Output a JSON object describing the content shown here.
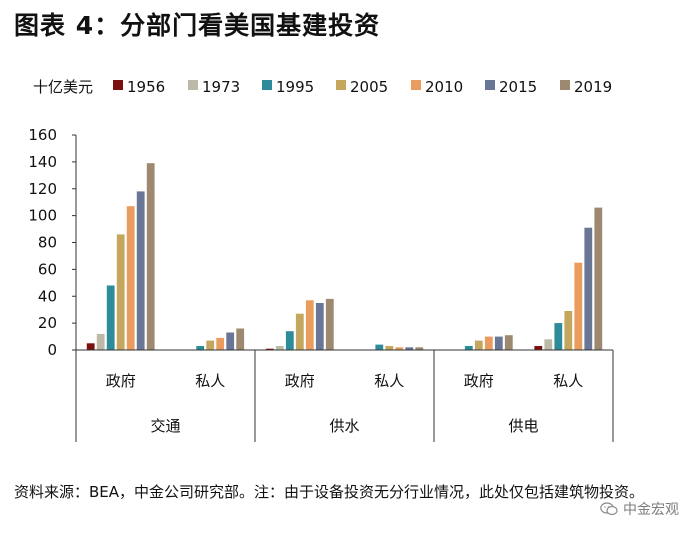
{
  "title": "图表 4：分部门看美国基建投资",
  "chart_data": {
    "type": "bar",
    "unit_label": "十亿美元",
    "ylim": [
      0,
      160
    ],
    "yticks": [
      "0",
      "20",
      "40",
      "60",
      "80",
      "100",
      "120",
      "140",
      "160"
    ],
    "legend_position": "top",
    "grid": false,
    "groups": [
      {
        "label": "交通",
        "categories": [
          "政府",
          "私人"
        ]
      },
      {
        "label": "供水",
        "categories": [
          "政府",
          "私人"
        ]
      },
      {
        "label": "供电",
        "categories": [
          "政府",
          "私人"
        ]
      }
    ],
    "series": [
      {
        "name": "1956",
        "color": "#7b1010",
        "values": [
          5,
          0,
          1,
          0,
          0,
          3
        ]
      },
      {
        "name": "1973",
        "color": "#bdb9a8",
        "values": [
          12,
          0,
          3,
          0,
          0,
          8
        ]
      },
      {
        "name": "1995",
        "color": "#2e8b9a",
        "values": [
          48,
          3,
          14,
          4,
          3,
          20
        ]
      },
      {
        "name": "2005",
        "color": "#c4a65e",
        "values": [
          86,
          7,
          27,
          3,
          7,
          29
        ]
      },
      {
        "name": "2010",
        "color": "#e99c5e",
        "values": [
          107,
          9,
          37,
          2,
          10,
          65
        ]
      },
      {
        "name": "2015",
        "color": "#6a7695",
        "values": [
          118,
          13,
          35,
          2,
          10,
          91
        ]
      },
      {
        "name": "2019",
        "color": "#9d8870",
        "values": [
          139,
          16,
          38,
          2,
          11,
          106
        ]
      }
    ]
  },
  "source_note": "资料来源：BEA，中金公司研究部。注：由于设备投资无分行业情况，此处仅包括建筑物投资。",
  "watermark": {
    "text": "中金宏观",
    "icon": "wechat-icon"
  }
}
